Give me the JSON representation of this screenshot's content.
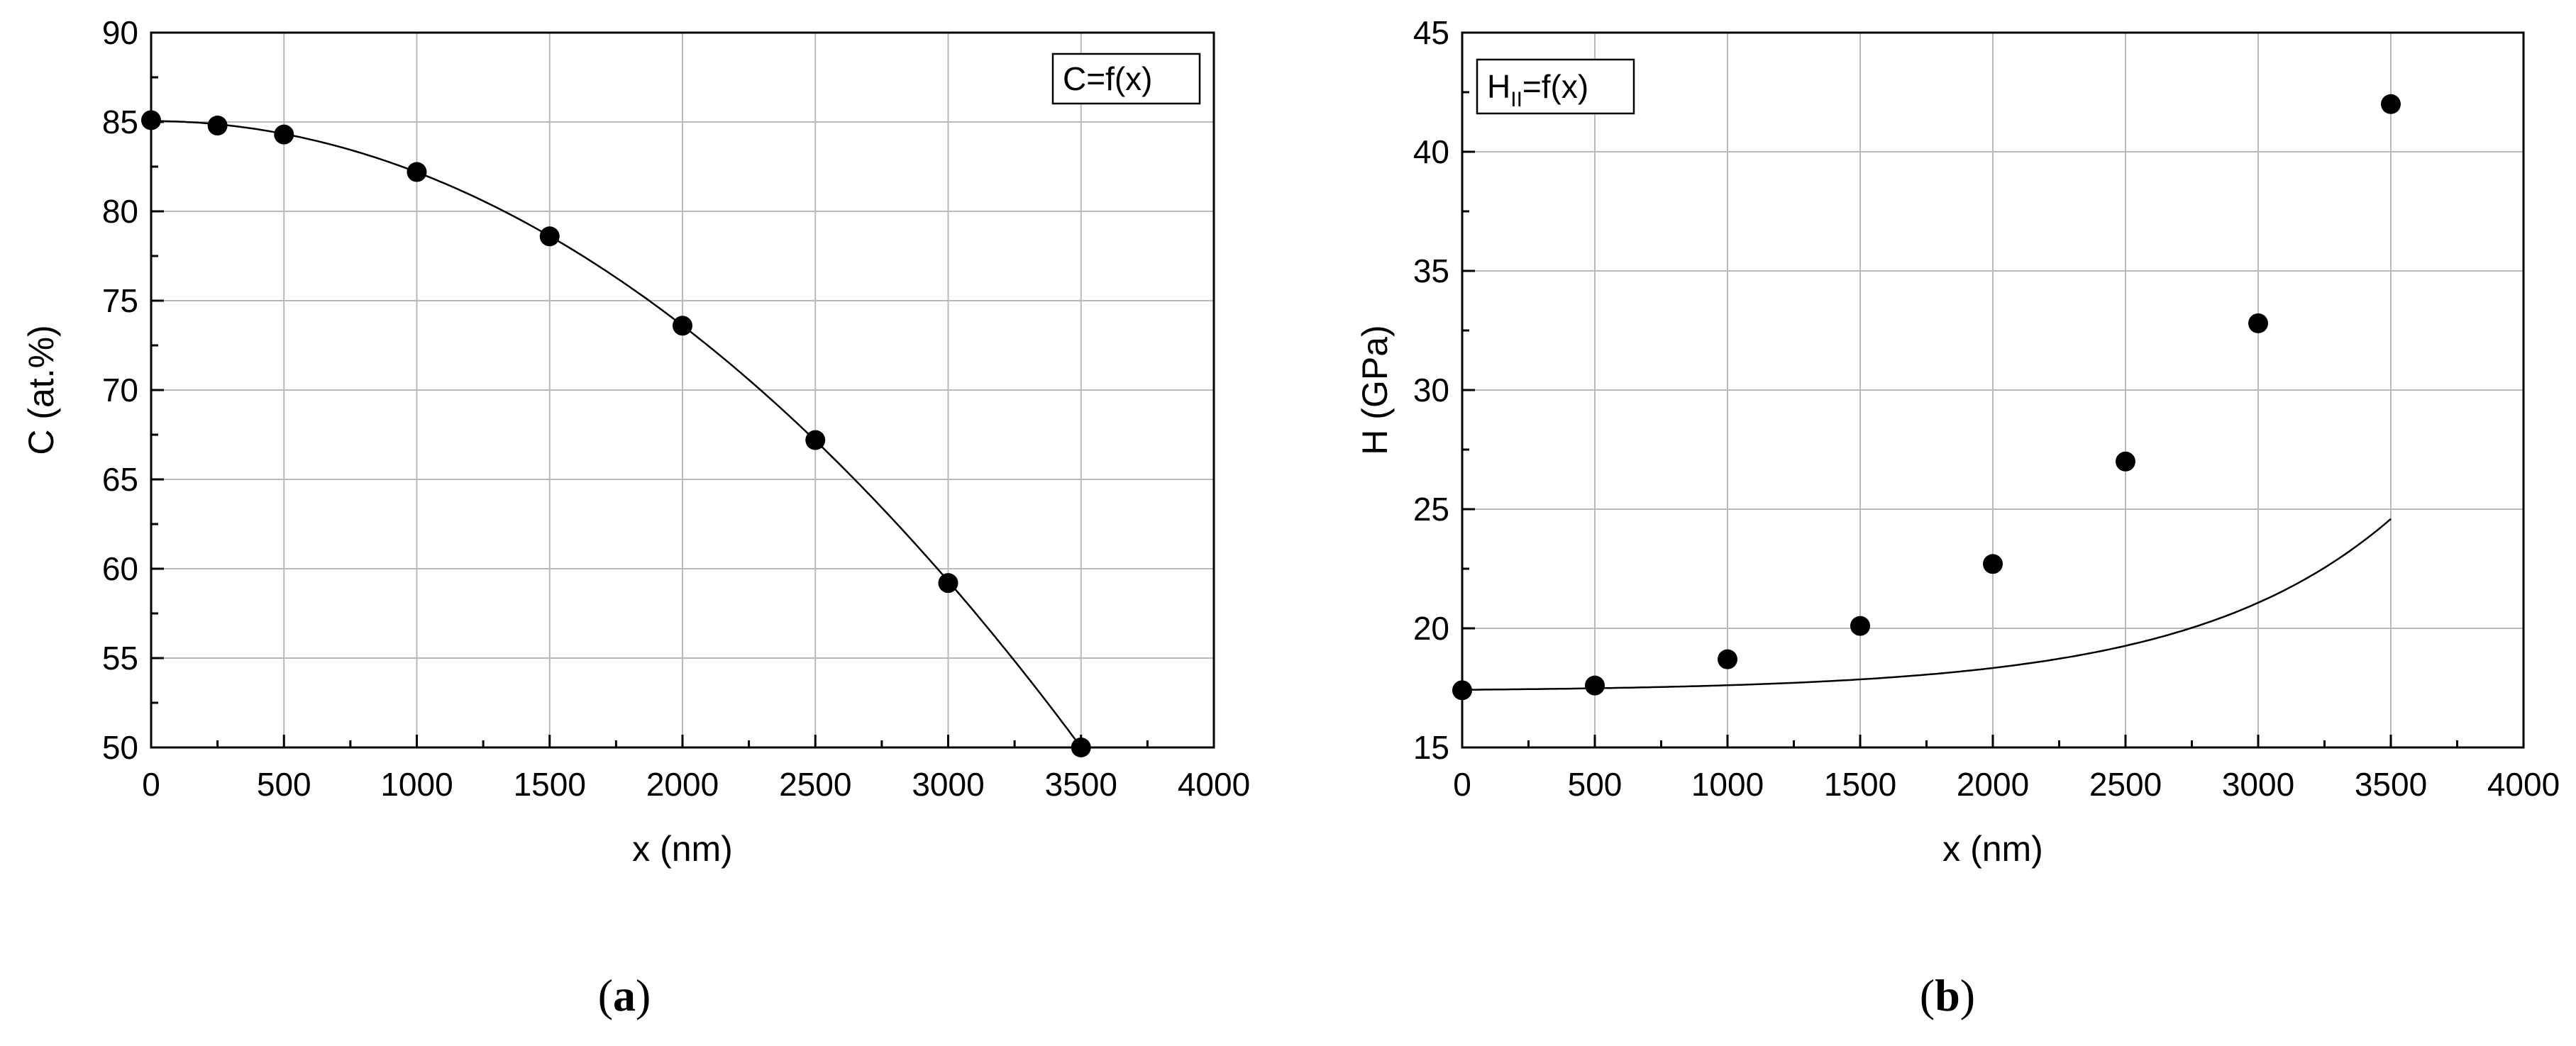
{
  "chart_data": [
    {
      "type": "scatter",
      "panel_label": "a",
      "xlabel": "x (nm)",
      "ylabel": "C (at.%)",
      "xlim": [
        0,
        4000
      ],
      "ylim": [
        50,
        90
      ],
      "x_ticks": [
        0,
        500,
        1000,
        1500,
        2000,
        2500,
        3000,
        3500,
        4000
      ],
      "y_ticks": [
        50,
        55,
        60,
        65,
        70,
        75,
        80,
        85,
        90
      ],
      "grid": true,
      "legend": {
        "text": "C=f(x)",
        "sub": "",
        "suffix": "",
        "placement": "top-right"
      },
      "series": [
        {
          "name": "C=f(x)",
          "x": [
            0,
            250,
            500,
            1000,
            1500,
            2000,
            2500,
            3000,
            3500
          ],
          "y": [
            85.1,
            84.8,
            84.3,
            82.2,
            78.6,
            73.6,
            67.2,
            59.2,
            50.0
          ]
        }
      ],
      "fit": {
        "kind": "quadratic",
        "coef": [
          85.05,
          -2.86e-06
        ]
      }
    },
    {
      "type": "scatter",
      "panel_label": "b",
      "xlabel": "x (nm)",
      "ylabel": "H (GPa)",
      "xlim": [
        0,
        4000
      ],
      "ylim": [
        15,
        45
      ],
      "x_ticks": [
        0,
        500,
        1000,
        1500,
        2000,
        2500,
        3000,
        3500,
        4000
      ],
      "y_ticks": [
        15,
        20,
        25,
        30,
        35,
        40,
        45
      ],
      "grid": true,
      "legend": {
        "text": "H",
        "sub": "II",
        "suffix": "=f(x)",
        "placement": "top-left"
      },
      "series": [
        {
          "name": "H_II=f(x)",
          "x": [
            0,
            500,
            1000,
            1500,
            2000,
            2500,
            3000,
            3500
          ],
          "y": [
            17.4,
            17.6,
            18.7,
            20.1,
            22.7,
            27.0,
            32.8,
            42.0
          ]
        }
      ],
      "fit": {
        "kind": "exponential",
        "coef": [
          17.35,
          0.0689,
          0.00133
        ]
      }
    }
  ]
}
